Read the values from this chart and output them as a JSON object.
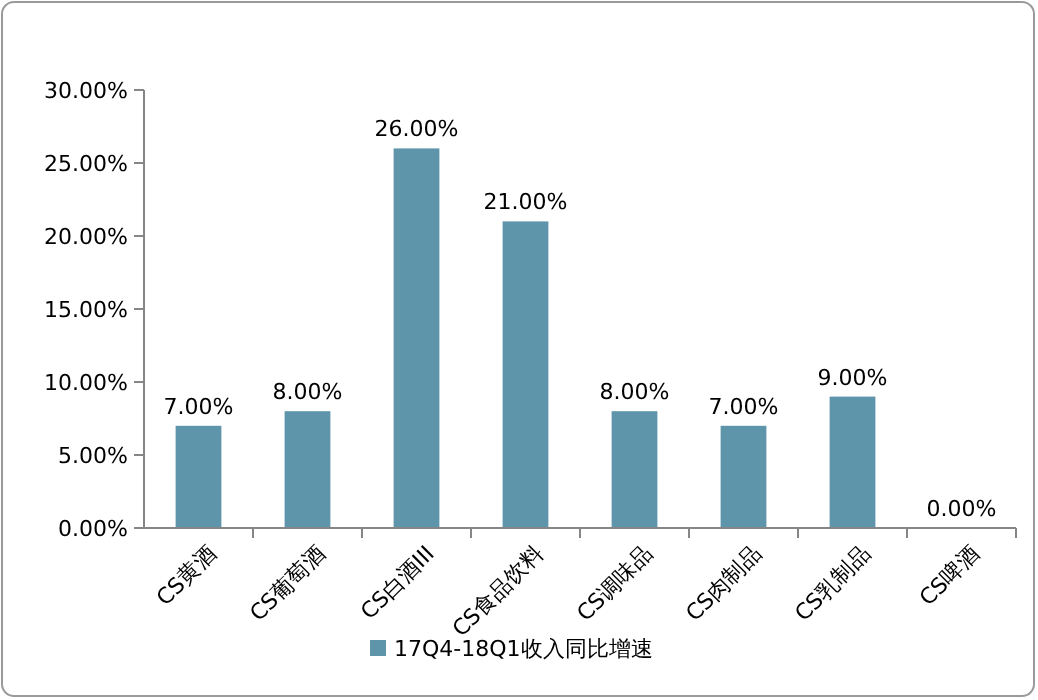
{
  "chart_data": {
    "type": "bar",
    "categories": [
      "CS黄酒",
      "CS葡萄酒",
      "CS白酒III",
      "CS食品饮料",
      "CS调味品",
      "CS肉制品",
      "CS乳制品",
      "CS啤酒"
    ],
    "series": [
      {
        "name": "17Q4-18Q1收入同比增速",
        "color": "#5f95aa",
        "values": [
          7,
          8,
          26,
          21,
          8,
          7,
          9,
          0
        ],
        "value_labels": [
          "7.00%",
          "8.00%",
          "26.00%",
          "21.00%",
          "8.00%",
          "7.00%",
          "9.00%",
          "0.00%"
        ]
      }
    ],
    "ylim": [
      0,
      30
    ],
    "yticks": [
      {
        "value": 0,
        "label": "0.00%"
      },
      {
        "value": 5,
        "label": "5.00%"
      },
      {
        "value": 10,
        "label": "10.00%"
      },
      {
        "value": 15,
        "label": "15.00%"
      },
      {
        "value": 20,
        "label": "20.00%"
      },
      {
        "value": 25,
        "label": "25.00%"
      },
      {
        "value": 30,
        "label": "30.00%"
      }
    ],
    "grid": false,
    "legend": "bottom"
  }
}
